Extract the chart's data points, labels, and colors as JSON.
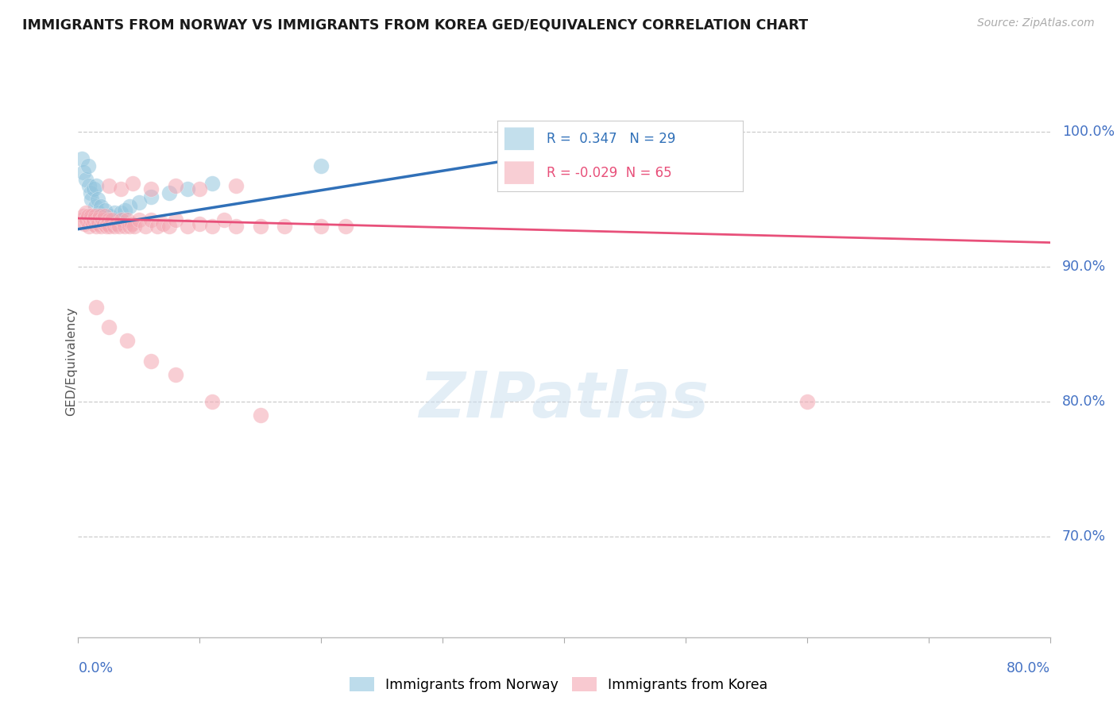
{
  "title": "IMMIGRANTS FROM NORWAY VS IMMIGRANTS FROM KOREA GED/EQUIVALENCY CORRELATION CHART",
  "source": "Source: ZipAtlas.com",
  "ylabel": "GED/Equivalency",
  "ylabel_right_labels": [
    "100.0%",
    "90.0%",
    "80.0%",
    "70.0%"
  ],
  "ylabel_right_values": [
    1.0,
    0.9,
    0.8,
    0.7
  ],
  "xmin": 0.0,
  "xmax": 0.8,
  "ymin": 0.625,
  "ymax": 1.035,
  "norway_R": 0.347,
  "norway_N": 29,
  "korea_R": -0.029,
  "korea_N": 65,
  "legend_norway": "Immigrants from Norway",
  "legend_korea": "Immigrants from Korea",
  "blue_color": "#92c5de",
  "pink_color": "#f4a6b2",
  "blue_line_color": "#3070b8",
  "pink_line_color": "#e8507a",
  "norway_x": [
    0.003,
    0.004,
    0.006,
    0.008,
    0.009,
    0.01,
    0.011,
    0.013,
    0.014,
    0.015,
    0.016,
    0.017,
    0.019,
    0.02,
    0.022,
    0.024,
    0.026,
    0.028,
    0.03,
    0.032,
    0.035,
    0.038,
    0.042,
    0.05,
    0.06,
    0.075,
    0.09,
    0.11,
    0.2
  ],
  "norway_y": [
    0.98,
    0.97,
    0.965,
    0.975,
    0.96,
    0.955,
    0.95,
    0.958,
    0.945,
    0.96,
    0.95,
    0.94,
    0.945,
    0.935,
    0.942,
    0.935,
    0.938,
    0.932,
    0.94,
    0.935,
    0.94,
    0.942,
    0.945,
    0.948,
    0.952,
    0.955,
    0.958,
    0.962,
    0.975
  ],
  "korea_x": [
    0.003,
    0.004,
    0.005,
    0.006,
    0.007,
    0.008,
    0.009,
    0.01,
    0.011,
    0.012,
    0.013,
    0.014,
    0.015,
    0.016,
    0.017,
    0.018,
    0.019,
    0.02,
    0.021,
    0.022,
    0.023,
    0.024,
    0.025,
    0.026,
    0.028,
    0.03,
    0.032,
    0.034,
    0.036,
    0.038,
    0.04,
    0.042,
    0.044,
    0.046,
    0.05,
    0.055,
    0.06,
    0.065,
    0.07,
    0.075,
    0.08,
    0.09,
    0.1,
    0.11,
    0.12,
    0.13,
    0.15,
    0.17,
    0.2,
    0.22,
    0.025,
    0.035,
    0.045,
    0.06,
    0.08,
    0.1,
    0.13,
    0.015,
    0.025,
    0.04,
    0.06,
    0.08,
    0.11,
    0.15,
    0.6
  ],
  "korea_y": [
    0.935,
    0.938,
    0.932,
    0.94,
    0.935,
    0.938,
    0.93,
    0.935,
    0.938,
    0.932,
    0.935,
    0.938,
    0.93,
    0.935,
    0.932,
    0.938,
    0.93,
    0.935,
    0.932,
    0.938,
    0.93,
    0.932,
    0.935,
    0.93,
    0.935,
    0.93,
    0.932,
    0.93,
    0.935,
    0.93,
    0.935,
    0.93,
    0.932,
    0.93,
    0.935,
    0.93,
    0.935,
    0.93,
    0.932,
    0.93,
    0.935,
    0.93,
    0.932,
    0.93,
    0.935,
    0.93,
    0.93,
    0.93,
    0.93,
    0.93,
    0.96,
    0.958,
    0.962,
    0.958,
    0.96,
    0.958,
    0.96,
    0.87,
    0.855,
    0.845,
    0.83,
    0.82,
    0.8,
    0.79,
    0.8
  ]
}
